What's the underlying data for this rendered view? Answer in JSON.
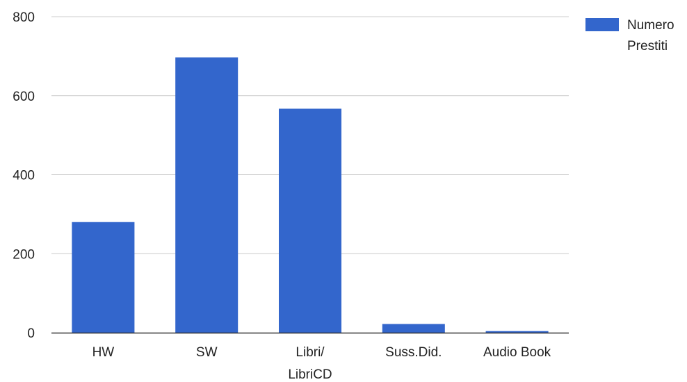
{
  "chart_data": {
    "type": "bar",
    "categories": [
      "HW",
      "SW",
      "Libri/ LibriCD",
      "Suss.Did.",
      "Audio Book"
    ],
    "category_lines": [
      [
        "HW"
      ],
      [
        "SW"
      ],
      [
        "Libri/",
        "LibriCD"
      ],
      [
        "Suss.Did."
      ],
      [
        "Audio Book"
      ]
    ],
    "series": [
      {
        "name": "Numero Prestiti",
        "name_lines": [
          "Numero",
          "Prestiti"
        ],
        "color": "#3366cc",
        "values": [
          280,
          697,
          567,
          22,
          4
        ]
      }
    ],
    "ylim": [
      0,
      800
    ],
    "yticks": [
      "0",
      "200",
      "400",
      "600",
      "800"
    ],
    "grid": true,
    "legend_position": "right"
  }
}
